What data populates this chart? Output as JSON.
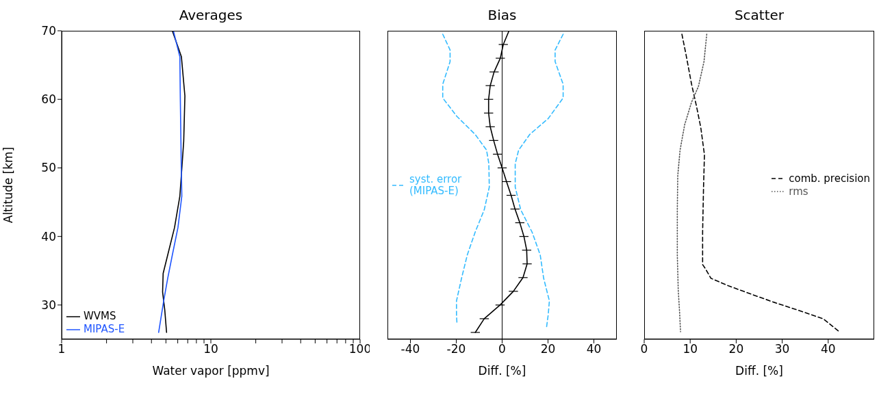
{
  "chart_data": [
    {
      "type": "line",
      "title": "Averages",
      "xlabel": "Water vapor [ppmv]",
      "ylabel": "Altitude [km]",
      "log": "x",
      "xlim": [
        1,
        100
      ],
      "xticks": [
        1,
        {
          "value": 2,
          "label": null
        },
        {
          "value": 3,
          "label": null
        },
        {
          "value": 4,
          "label": null
        },
        {
          "value": 5,
          "label": null
        },
        {
          "value": 6,
          "label": null
        },
        {
          "value": 7,
          "label": null
        },
        {
          "value": 8,
          "label": null
        },
        {
          "value": 9,
          "label": null
        },
        10,
        {
          "value": 20,
          "label": null
        },
        {
          "value": 30,
          "label": null
        },
        {
          "value": 40,
          "label": null
        },
        {
          "value": 50,
          "label": null
        },
        {
          "value": 60,
          "label": null
        },
        {
          "value": 70,
          "label": null
        },
        {
          "value": 80,
          "label": null
        },
        {
          "value": 90,
          "label": null
        },
        100
      ],
      "ylim": [
        25,
        70
      ],
      "yticks": [
        30,
        40,
        50,
        60,
        70
      ],
      "legend": "bottom left",
      "series": [
        {
          "name": "WVMS",
          "color": "#000000",
          "line_style": "solid",
          "x": [
            5.52,
            6.35,
            6.7,
            6.58,
            6.39,
            6.2,
            5.71,
            5.14,
            4.79,
            4.75,
            4.91,
            5.05
          ],
          "values": [
            70,
            66.2,
            60.5,
            53.9,
            49.9,
            45.9,
            41.3,
            37.3,
            34.6,
            31.9,
            29.3,
            26.0
          ]
        },
        {
          "name": "MIPAS-E",
          "color": "#1f55ff",
          "line_style": "solid",
          "x": [
            5.61,
            6.2,
            6.24,
            6.34,
            6.39,
            6.02,
            5.52,
            5.14,
            4.83,
            4.47
          ],
          "values": [
            70,
            66.2,
            60.5,
            49.9,
            45.9,
            41.3,
            37.3,
            33.9,
            30.6,
            26.0
          ]
        }
      ]
    },
    {
      "type": "line",
      "title": "Bias",
      "xlabel": "Diff. [%]",
      "xlim": [
        -50,
        50
      ],
      "xticks": [
        -40,
        -20,
        0,
        20,
        40
      ],
      "ylim": [
        25,
        70
      ],
      "yticks": [
        30,
        40,
        50,
        60,
        70
      ],
      "tick_labels": "x",
      "legend": "left",
      "ref_lines": [
        {
          "axis": "x",
          "value": 0,
          "color": "#000000"
        }
      ],
      "series": [
        {
          "color": "#000000",
          "line_style": "solid",
          "x": [
            3.0,
            0.5,
            -0.8,
            -3.5,
            -5.2,
            -5.9,
            -5.9,
            -5.2,
            -3.7,
            -2.0,
            0,
            1.9,
            3.9,
            5.6,
            7.7,
            9.5,
            10.7,
            10.9,
            9.1,
            4.9,
            -0.9,
            -7.8,
            -11.7
          ],
          "values": [
            70,
            68,
            66,
            64,
            62,
            60,
            58,
            56,
            54,
            52,
            50,
            48,
            46,
            44,
            42,
            40,
            38,
            36,
            34,
            32,
            30,
            28,
            26
          ],
          "xerrors": [
            null,
            2,
            2,
            2,
            2,
            2,
            2,
            2,
            2,
            2,
            2,
            2,
            2,
            2,
            2,
            2,
            2,
            2,
            2,
            2,
            2,
            2,
            2
          ]
        },
        {
          "name": "syst. error (MIPAS-E)",
          "color": "#33bbff",
          "line_style": "dashed",
          "x": [
            -25.9,
            -22.7,
            -22.7,
            -25.9,
            -25.9,
            -19.7,
            -11.8,
            -6.8,
            -5.8,
            -5.6,
            -7.8,
            -11.8,
            -15.2,
            -17.7,
            -19.9,
            -19.9,
            -19.7
          ],
          "values": [
            69.5,
            67.2,
            65.5,
            62.2,
            60.2,
            57.5,
            54.9,
            52.6,
            50.6,
            47.2,
            43.9,
            40.6,
            37.3,
            33.9,
            30.6,
            28.6,
            27.3
          ]
        },
        {
          "color": "#33bbff",
          "line_style": "dashed",
          "x": [
            26.6,
            23.1,
            23.1,
            26.6,
            26.6,
            20.1,
            12.1,
            7.2,
            5.7,
            5.7,
            8.1,
            13.1,
            16.6,
            18.1,
            20.6,
            20.1,
            19.3
          ],
          "values": [
            69.5,
            67.2,
            65.5,
            62.2,
            60.2,
            57.2,
            54.9,
            52.6,
            50.6,
            47.2,
            43.9,
            40.6,
            37.3,
            33.9,
            30.6,
            28.6,
            26.6
          ]
        }
      ]
    },
    {
      "type": "line",
      "title": "Scatter",
      "xlabel": "Diff. [%]",
      "xlim": [
        0,
        50
      ],
      "xticks": [
        0,
        10,
        20,
        30,
        40
      ],
      "ylim": [
        25,
        70
      ],
      "yticks": [
        30,
        40,
        50,
        60,
        70
      ],
      "tick_labels": "x",
      "legend": "right",
      "series": [
        {
          "name": "comb. precision",
          "color": "#000000",
          "line_style": "dashed",
          "x": [
            8.2,
            9.1,
            10.3,
            11.4,
            12.3,
            13.1,
            12.9,
            12.7,
            12.7,
            13.3,
            14.5,
            18.3,
            23.2,
            28.2,
            33.2,
            38.9,
            42.4
          ],
          "values": [
            69.5,
            66.5,
            62.2,
            58.9,
            55.9,
            51.9,
            47.2,
            40.6,
            35.9,
            35.3,
            33.9,
            32.8,
            31.6,
            30.4,
            29.3,
            28.0,
            26.1
          ]
        },
        {
          "name": "rms",
          "color": "#555555",
          "line_style": "dotted",
          "x": [
            13.6,
            13.0,
            11.8,
            10.3,
            8.8,
            7.8,
            7.3,
            7.2,
            7.2,
            7.4,
            7.7,
            7.9
          ],
          "values": [
            69.5,
            65.5,
            61.9,
            59.6,
            56.3,
            52.6,
            48.9,
            43.9,
            37.3,
            32.2,
            28.9,
            26.1
          ]
        }
      ]
    }
  ]
}
